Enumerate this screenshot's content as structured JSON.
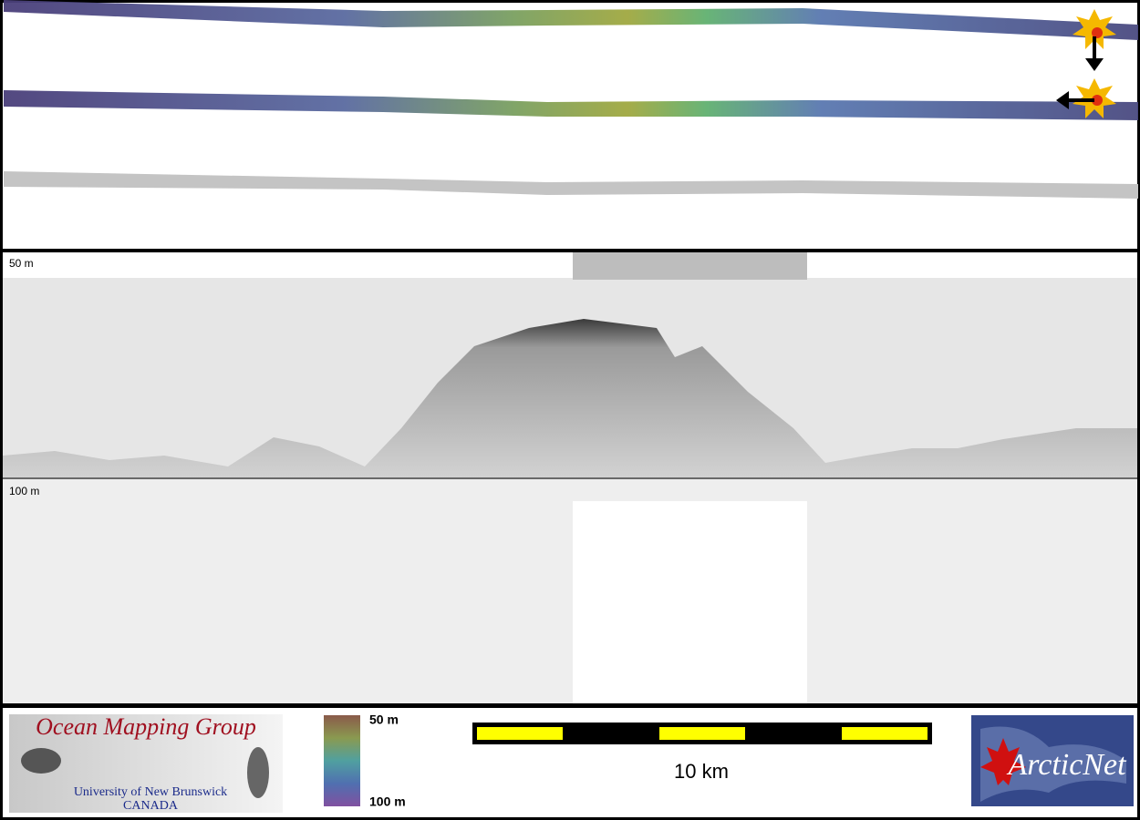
{
  "profile": {
    "top_label": "50 m",
    "bottom_label": "100 m"
  },
  "logo_left": {
    "title": "Ocean Mapping Group",
    "line1": "University of New Brunswick",
    "line2": "CANADA"
  },
  "colorbar": {
    "top": "50 m",
    "bottom": "100 m"
  },
  "scale_bar": {
    "label": "10 km"
  },
  "logo_right": {
    "text": "ArcticNet"
  }
}
